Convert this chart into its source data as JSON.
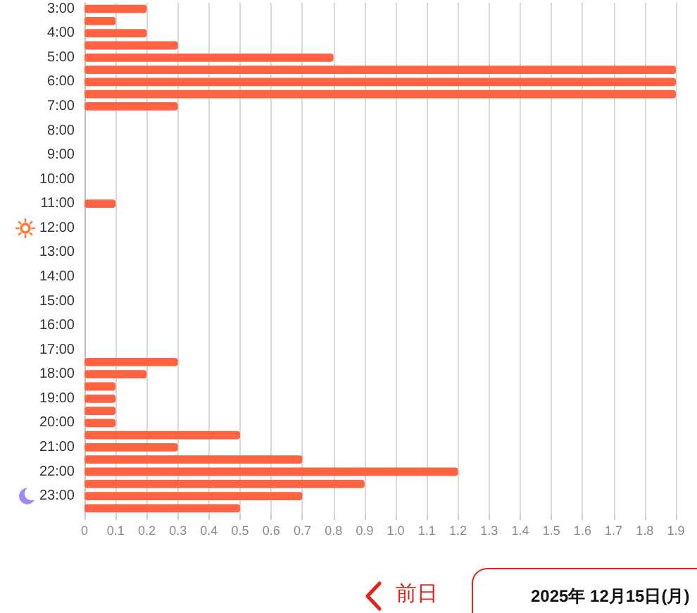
{
  "chart_data": {
    "type": "bar",
    "orientation": "horizontal",
    "categories": [
      "3:00",
      null,
      "4:00",
      null,
      "5:00",
      null,
      "6:00",
      null,
      "7:00",
      null,
      "8:00",
      null,
      "9:00",
      null,
      "10:00",
      null,
      "11:00",
      null,
      "12:00",
      null,
      "13:00",
      null,
      "14:00",
      null,
      "15:00",
      null,
      "16:00",
      null,
      "17:00",
      null,
      "18:00",
      null,
      "19:00",
      null,
      "20:00",
      null,
      "21:00",
      null,
      "22:00",
      null,
      "23:00",
      null
    ],
    "values": [
      0.2,
      0.1,
      0.2,
      0.3,
      0.8,
      1.9,
      1.9,
      1.9,
      0.3,
      0,
      0,
      0,
      0,
      0,
      0,
      0,
      0.1,
      0,
      0,
      0,
      0,
      0,
      0,
      0,
      0,
      0,
      0,
      0,
      0,
      0.3,
      0.2,
      0.1,
      0.1,
      0.1,
      0.1,
      0.5,
      0.3,
      0.7,
      1.2,
      0.9,
      0.7,
      0.5
    ],
    "color": "#ff6342",
    "xlim": [
      0,
      1.9
    ],
    "xticks": [
      0,
      0.1,
      0.2,
      0.3,
      0.4,
      0.5,
      0.6,
      0.7,
      0.8,
      0.9,
      {
        "value": 1,
        "label": "1.0"
      },
      1.1,
      1.2,
      1.3,
      1.4,
      1.5,
      1.6,
      1.7,
      1.8,
      1.9
    ],
    "grid": "x",
    "annotations": [
      "前日",
      "2025年 12月15日(月)"
    ]
  }
}
